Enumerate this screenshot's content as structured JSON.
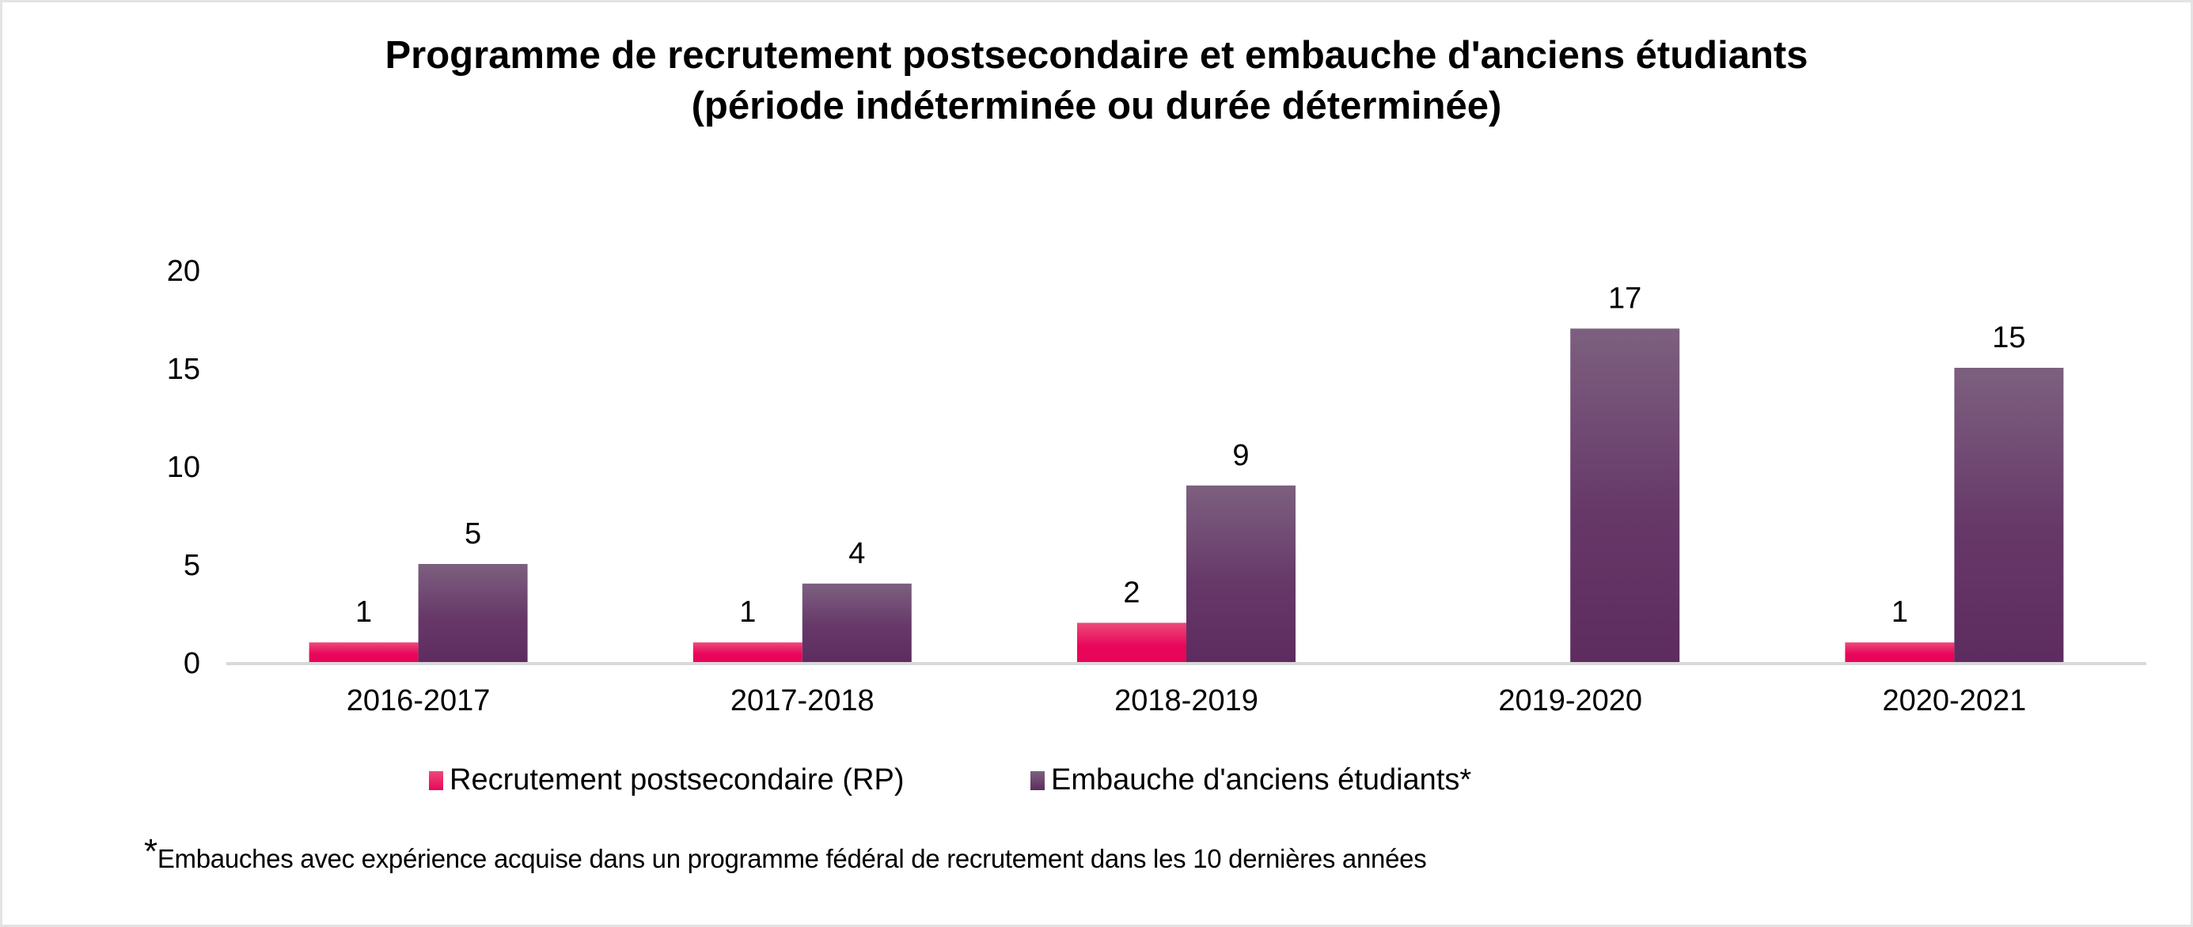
{
  "chart_data": {
    "type": "bar",
    "title": "Programme de recrutement postsecondaire et embauche d'anciens étudiants",
    "subtitle": "(période indéterminée ou durée déterminée)",
    "categories": [
      "2016-2017",
      "2017-2018",
      "2018-2019",
      "2019-2020",
      "2020-2021"
    ],
    "series": [
      {
        "name": "Recrutement postsecondaire (RP)",
        "color": "#e8065a",
        "values": [
          1,
          1,
          2,
          null,
          1
        ],
        "labels": [
          "1",
          "1",
          "2",
          "",
          "1"
        ]
      },
      {
        "name": "Embauche d'anciens étudiants*",
        "color": "#5e2c5f",
        "values": [
          5,
          4,
          9,
          17,
          15
        ],
        "labels": [
          "5",
          "4",
          "9",
          "17",
          "15"
        ]
      }
    ],
    "xlabel": "",
    "ylabel": "",
    "ylim": [
      0,
      20
    ],
    "yticks": [
      "0",
      "5",
      "10",
      "15",
      "20"
    ],
    "grid": false,
    "legend": "bottom",
    "footnote_marker": "*",
    "footnote": "Embauches avec expérience acquise dans un programme fédéral de recrutement dans les 10 dernières années"
  }
}
